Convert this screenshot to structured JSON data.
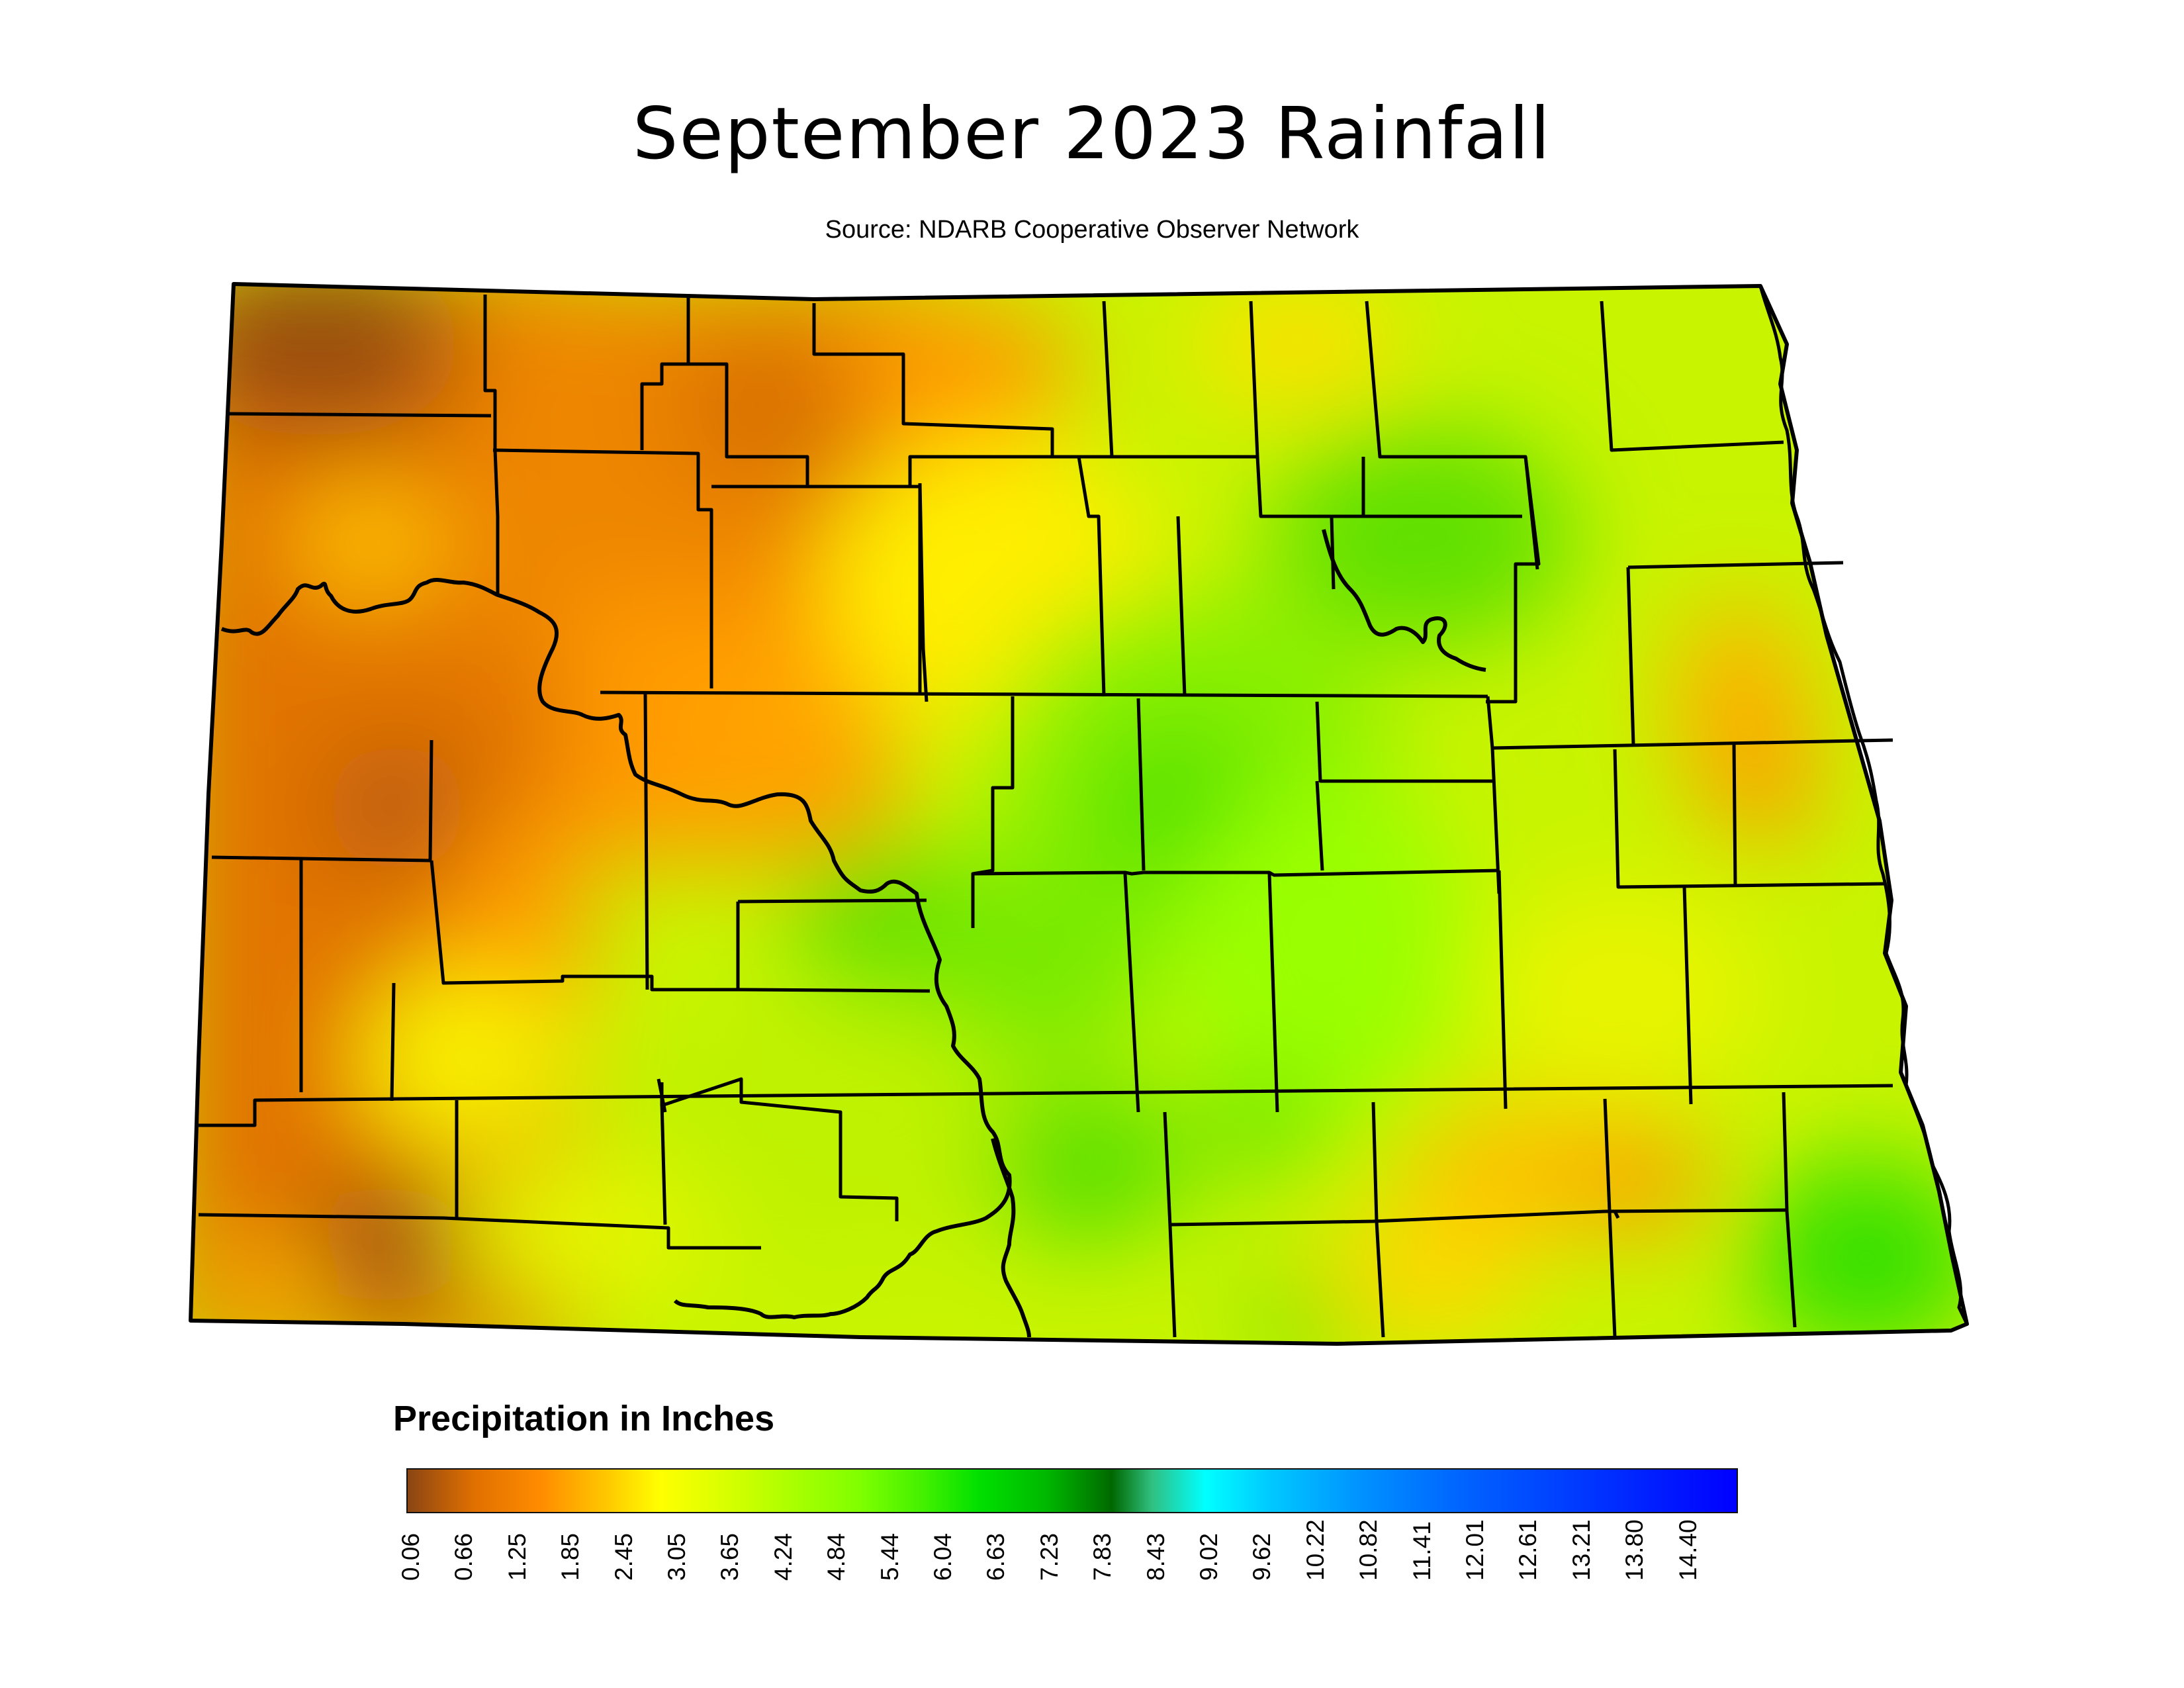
{
  "title": "September 2023 Rainfall",
  "subtitle": "Source: NDARB Cooperative Observer Network",
  "legend": {
    "title": "Precipitation in Inches",
    "ticks": [
      "0.06",
      "0.66",
      "1.25",
      "1.85",
      "2.45",
      "3.05",
      "3.65",
      "4.24",
      "4.84",
      "5.44",
      "6.04",
      "6.63",
      "7.23",
      "7.83",
      "8.43",
      "9.02",
      "9.62",
      "10.22",
      "10.82",
      "11.41",
      "12.01",
      "12.61",
      "13.21",
      "13.80",
      "14.40"
    ],
    "colors": [
      "#8b4513",
      "#e07000",
      "#ff8c00",
      "#ffc800",
      "#ffff00",
      "#d8ff00",
      "#aaff00",
      "#80ff00",
      "#40f000",
      "#00e000",
      "#00b800",
      "#008a00",
      "#006800",
      "#30c080",
      "#00ffff",
      "#00c8ff",
      "#0090ff",
      "#0060ff",
      "#0030ff",
      "#0000ff"
    ]
  },
  "colors": {
    "very_dry": "#9a4d0c",
    "dry": "#e27400",
    "moderate": "#ffd000",
    "mid": "#e8ff10",
    "wet": "#9cff00",
    "wetter": "#38e400"
  }
}
